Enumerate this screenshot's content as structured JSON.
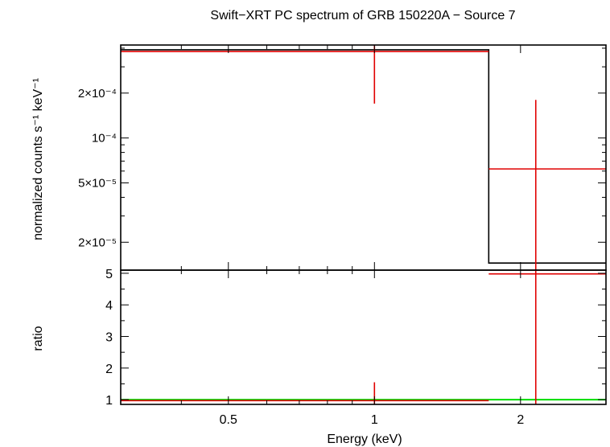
{
  "chart_data": {
    "type": "step",
    "title": "Swift−XRT PC spectrum of GRB 150220A − Source 7",
    "xlabel": "Energy (keV)",
    "xscale": "log",
    "xlim": [
      0.3,
      3.0
    ],
    "x_ticks": [
      {
        "value": 0.5,
        "label": "0.5"
      },
      {
        "value": 1,
        "label": "1"
      },
      {
        "value": 2,
        "label": "2"
      }
    ],
    "top_panel": {
      "ylabel": "normalized counts s⁻¹ keV⁻¹",
      "yscale": "log",
      "ylim": [
        1.3e-05,
        0.00042
      ],
      "y_ticks": [
        {
          "value": 2e-05,
          "label": "2×10⁻⁵"
        },
        {
          "value": 5e-05,
          "label": "5×10⁻⁵"
        },
        {
          "value": 0.0001,
          "label": "10⁻⁴"
        },
        {
          "value": 0.0002,
          "label": "2×10⁻⁴"
        }
      ],
      "data": {
        "color": "#e00000",
        "points": [
          {
            "x": 1.0,
            "xlo": 0.3,
            "xhi": 1.72,
            "y": 0.00038,
            "ylo": 0.00017,
            "yhi": 0.00042
          },
          {
            "x": 2.15,
            "xlo": 1.72,
            "xhi": 3.0,
            "y": 6.2e-05,
            "ylo": 1.3e-05,
            "yhi": 0.00018
          }
        ]
      },
      "model": {
        "color": "#000000",
        "bins": [
          {
            "xlo": 0.3,
            "xhi": 1.72,
            "y": 0.00039
          },
          {
            "xlo": 1.72,
            "xhi": 3.0,
            "y": 1.45e-05
          }
        ]
      }
    },
    "bottom_panel": {
      "ylabel": "ratio",
      "ylim": [
        0.85,
        5.1
      ],
      "y_ticks": [
        {
          "value": 1,
          "label": "1"
        },
        {
          "value": 2,
          "label": "2"
        },
        {
          "value": 3,
          "label": "3"
        },
        {
          "value": 4,
          "label": "4"
        },
        {
          "value": 5,
          "label": "5"
        }
      ],
      "reference_line": {
        "y": 1,
        "color": "#00dd00"
      },
      "data": {
        "color": "#e00000",
        "points": [
          {
            "x": 1.0,
            "xlo": 0.3,
            "xhi": 1.72,
            "y": 0.97,
            "ylo": 0.85,
            "yhi": 1.55
          },
          {
            "x": 2.15,
            "xlo": 1.72,
            "xhi": 3.0,
            "y": 4.98,
            "ylo": 0.85,
            "yhi": 5.1
          }
        ]
      }
    }
  }
}
